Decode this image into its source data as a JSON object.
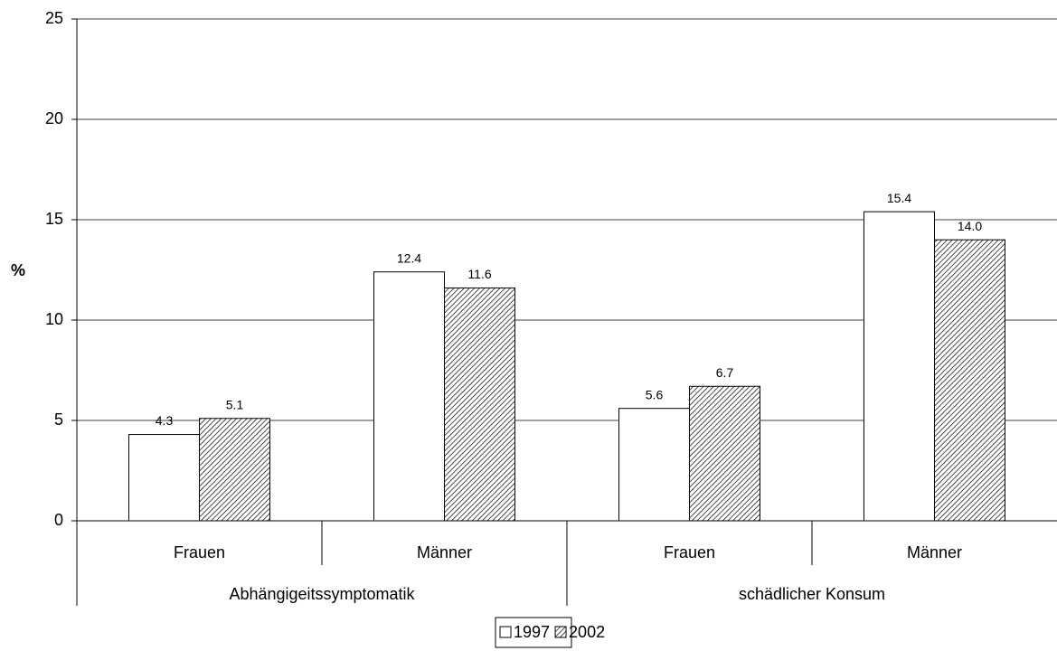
{
  "chart_data": {
    "type": "bar",
    "y_label": "%",
    "categories": [
      "Frauen",
      "Männer",
      "Frauen",
      "Männer"
    ],
    "groups": [
      "Abhängigeitssymptomatik",
      "schädlicher Konsum"
    ],
    "series": [
      {
        "name": "1997",
        "color": "#ffffff",
        "fill": "solid",
        "values": [
          4.3,
          12.4,
          5.6,
          15.4
        ],
        "value_labels": [
          "4.3",
          "12.4",
          "5.6",
          "15.4"
        ]
      },
      {
        "name": "2002",
        "color": "#ffffff",
        "fill": "hatch",
        "values": [
          5.1,
          11.6,
          6.7,
          14.0
        ],
        "value_labels": [
          "5.1",
          "11.6",
          "6.7",
          "14.0"
        ]
      }
    ],
    "ylim": [
      0,
      25
    ],
    "yticks": [
      0,
      5,
      10,
      15,
      20,
      25
    ],
    "grid": true,
    "legend": "bottom"
  }
}
